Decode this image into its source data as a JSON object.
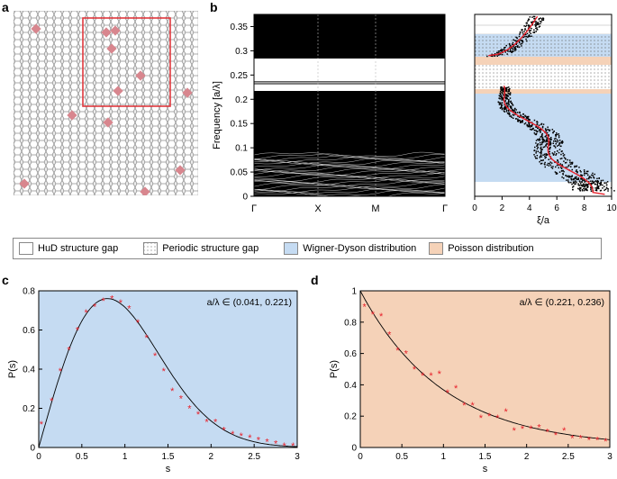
{
  "panels": {
    "a": "a",
    "b": "b",
    "c": "c",
    "d": "d"
  },
  "legend": [
    {
      "label": "HuD structure gap",
      "swatch": "white"
    },
    {
      "label": "Periodic structure gap",
      "swatch": "dots"
    },
    {
      "label": "Wigner-Dyson distribution",
      "swatch": "#c5dbf2"
    },
    {
      "label": "Poisson distribution",
      "swatch": "#f5d2b8"
    }
  ],
  "colors": {
    "wigner_dyson": "#c5dbf2",
    "poisson": "#f5d2b8",
    "marker": "#e8202a",
    "defect": "#d8868e",
    "frame": "#e0383e"
  },
  "band_chart": {
    "ylabel": "Frequency [a/λ]",
    "yticks": [
      "0.35",
      "0.3",
      "0.25",
      "0.2",
      "0.15",
      "0.1",
      "0.05",
      "0"
    ],
    "xticks": [
      "Γ",
      "X",
      "M",
      "Γ"
    ]
  },
  "loc_chart": {
    "xlabel": "ξ/a",
    "xticks": [
      "0",
      "2",
      "4",
      "6",
      "8",
      "10"
    ]
  },
  "chart_data": [
    {
      "type": "scatter",
      "panel": "c",
      "annotation": "a/λ ∈ (0.041, 0.221)",
      "xlabel": "s",
      "ylabel": "P(s)",
      "xlim": [
        0,
        3
      ],
      "ylim": [
        0,
        0.8
      ],
      "xticks": [
        "0",
        "0.5",
        "1",
        "1.5",
        "2",
        "2.5",
        "3"
      ],
      "yticks": [
        "0",
        "0.2",
        "0.4",
        "0.6",
        "0.8"
      ],
      "x": [
        0.03,
        0.15,
        0.25,
        0.35,
        0.45,
        0.55,
        0.65,
        0.75,
        0.85,
        0.95,
        1.05,
        1.15,
        1.25,
        1.35,
        1.45,
        1.55,
        1.65,
        1.75,
        1.85,
        1.95,
        2.05,
        2.15,
        2.25,
        2.35,
        2.45,
        2.55,
        2.65,
        2.75,
        2.85,
        2.95
      ],
      "y": [
        0.12,
        0.24,
        0.39,
        0.5,
        0.6,
        0.69,
        0.72,
        0.75,
        0.76,
        0.74,
        0.71,
        0.64,
        0.56,
        0.47,
        0.39,
        0.29,
        0.25,
        0.2,
        0.17,
        0.13,
        0.13,
        0.09,
        0.07,
        0.06,
        0.05,
        0.04,
        0.03,
        0.02,
        0.01,
        0.01
      ]
    },
    {
      "type": "scatter",
      "panel": "d",
      "annotation": "a/λ ∈ (0.221, 0.236)",
      "xlabel": "s",
      "ylabel": "P(s)",
      "xlim": [
        0,
        3
      ],
      "ylim": [
        0,
        1
      ],
      "xticks": [
        "0",
        "0.5",
        "1",
        "1.5",
        "2",
        "2.5",
        "3"
      ],
      "yticks": [
        "0",
        "0.2",
        "0.4",
        "0.6",
        "0.8",
        "1"
      ],
      "x": [
        0.05,
        0.15,
        0.25,
        0.35,
        0.45,
        0.55,
        0.65,
        0.75,
        0.85,
        0.95,
        1.05,
        1.15,
        1.25,
        1.35,
        1.45,
        1.55,
        1.65,
        1.75,
        1.85,
        1.95,
        2.05,
        2.15,
        2.25,
        2.35,
        2.45,
        2.55,
        2.65,
        2.75,
        2.85,
        2.95
      ],
      "y": [
        0.9,
        0.85,
        0.84,
        0.72,
        0.62,
        0.6,
        0.5,
        0.46,
        0.46,
        0.47,
        0.35,
        0.38,
        0.27,
        0.27,
        0.19,
        0.2,
        0.19,
        0.23,
        0.11,
        0.12,
        0.12,
        0.13,
        0.1,
        0.08,
        0.11,
        0.06,
        0.06,
        0.05,
        0.05,
        0.04
      ]
    }
  ]
}
